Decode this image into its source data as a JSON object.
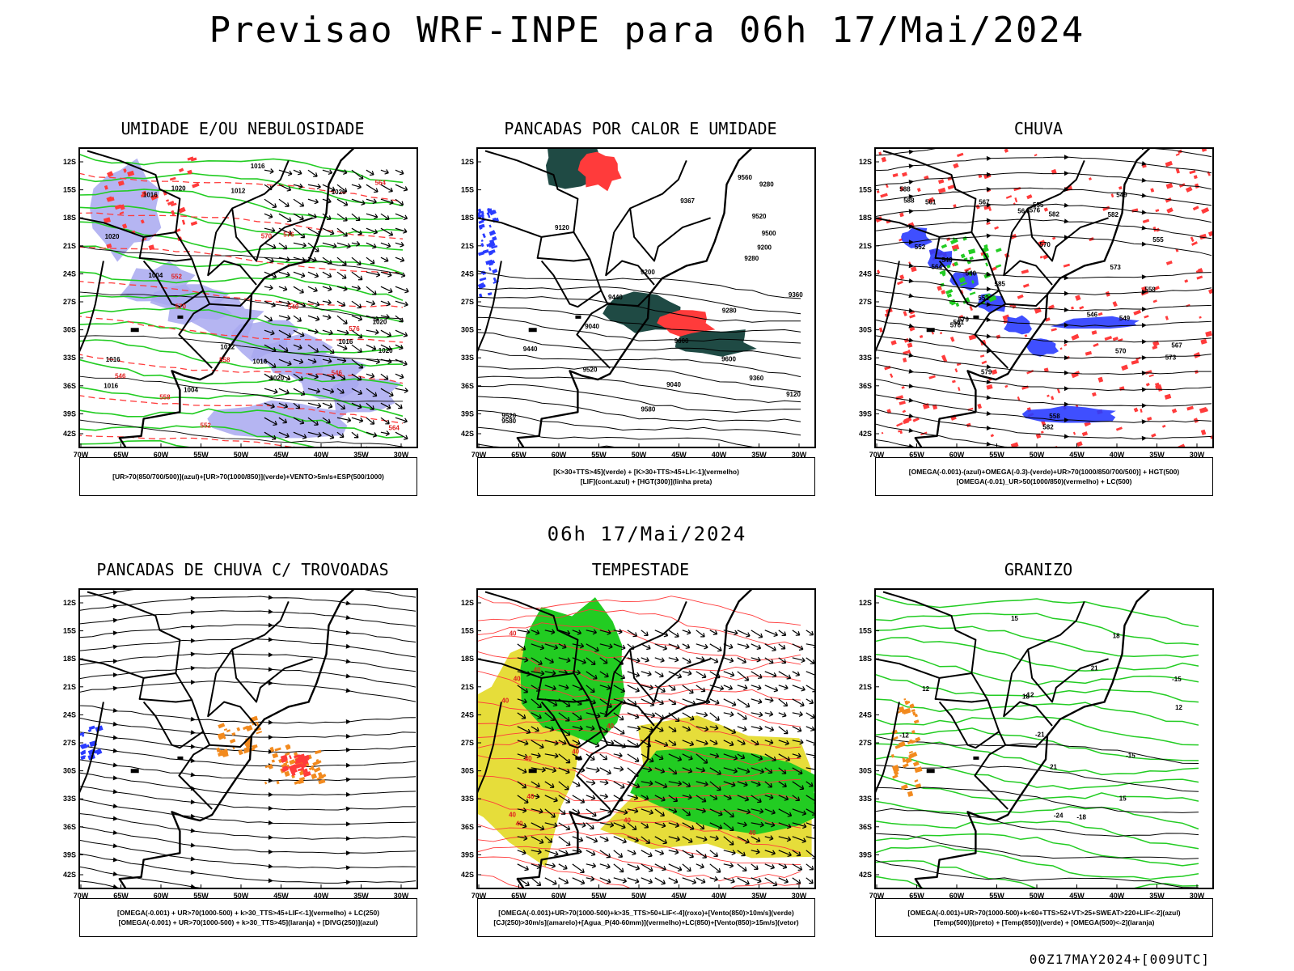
{
  "header": {
    "title": "Previsao WRF-INPE  para 06h 17/Mai/2024",
    "mid_date": "06h 17/Mai/2024",
    "run_label": "00Z17MAY2024+[009UTC]"
  },
  "axes": {
    "lat_ticks": [
      "12S",
      "15S",
      "18S",
      "21S",
      "24S",
      "27S",
      "30S",
      "33S",
      "36S",
      "39S",
      "42S"
    ],
    "lon_ticks": [
      "70W",
      "65W",
      "60W",
      "55W",
      "50W",
      "45W",
      "40W",
      "35W",
      "30W"
    ]
  },
  "colors": {
    "blue_fill": "#a8a8f0",
    "green": "#22cc22",
    "red": "#ff3b3b",
    "dark_teal": "#1f4a44",
    "yellow": "#e6dd3a",
    "orange": "#f28a1e",
    "blue": "#2a3cff"
  },
  "panels": [
    {
      "title": "UMIDADE E/OU NEBULOSIDADE",
      "legend": [
        "[UR>70(850/700/500)](azul)+[UR>70(1000/850)](verde)+VENTO>5m/s+ESP(500/1000)"
      ],
      "labels": [
        "1016",
        "1020",
        "1020",
        "1020",
        "1016",
        "1016",
        "1020",
        "1016",
        "1012",
        "1016",
        "1020",
        "1016",
        "1004",
        "1004",
        "1012",
        "1020",
        "576",
        "570",
        "564",
        "558",
        "552",
        "546",
        "540",
        "576",
        "570",
        "564",
        "558",
        "552",
        "546"
      ]
    },
    {
      "title": "PANCADAS POR CALOR E UMIDADE",
      "legend": [
        "[K>30+TTS>45](verde) + [K>30+TTS>45+LI<-1](vermelho)",
        "[LIF](cont.azul) + [HGT(300)](linha preta)"
      ],
      "labels": [
        "9580",
        "9600",
        "9580",
        "9520",
        "9560",
        "9500",
        "9367",
        "9520",
        "9440",
        "9280",
        "9360",
        "9600",
        "9520",
        "9440",
        "9360",
        "9280",
        "9200",
        "9120",
        "9040",
        "9120",
        "9200",
        "9280",
        "9040"
      ]
    },
    {
      "title": "CHUVA",
      "legend": [
        "[OMEGA(-0.001)-(azul)+OMEGA(-0.3)-(verde)+UR>70(1000/850/700/500)] + HGT(500)",
        "[OMEGA(-0.01)_UR>50(1000/850)(vermelho) + LC(500)"
      ],
      "labels": [
        "588",
        "582",
        "588",
        "585",
        "582",
        "579",
        "576",
        "573",
        "570",
        "567",
        "564",
        "561",
        "558",
        "555",
        "552",
        "549",
        "546",
        "582",
        "579",
        "576",
        "573",
        "570",
        "567",
        "564",
        "561",
        "558",
        "555",
        "552",
        "549",
        "546",
        "540"
      ]
    },
    {
      "title": "PANCADAS DE CHUVA C/ TROVOADAS",
      "legend": [
        "[OMEGA(-0.001) + UR>70(1000-500) + k>30_TTS>45+LIF<-1](vermelho) + LC(250)",
        "[OMEGA(-0.001) + UR>70(1000-500) + k>30_TTS>45](laranja) + [DIVG(250)](azul)"
      ],
      "labels": []
    },
    {
      "title": "TEMPESTADE",
      "legend": [
        "[OMEGA(-0.001)+UR>70(1000-500)+k>35_TTS>50+LIF<-4](roxo)+[Vento(850)>10m/s](verde)",
        "[CJ(250)>30m/s](amarelo)+[Agua_P(40-60mm)](vermelho)+LC(850)+[Vento(850)>15m/s](vetor)"
      ],
      "labels": [
        "40",
        "40",
        "40",
        "40",
        "40",
        "40",
        "40",
        "40",
        "40",
        "40",
        "40",
        "40"
      ]
    },
    {
      "title": "GRANIZO",
      "legend": [
        "[OMEGA(-0.001)+UR>70(1000-500)+k<60+TTS>52+VT>25+SWEAT>220+LIF<-2](azul)",
        "[Temp(500)](preto) + [Temp(850)](verde) + [OMEGA(500)<-2](laranja)"
      ],
      "labels": [
        "-12",
        "-15",
        "-18",
        "-21",
        "-24",
        "-12",
        "-15",
        "12",
        "15",
        "18",
        "21",
        "12",
        "15",
        "18",
        "21"
      ]
    }
  ]
}
